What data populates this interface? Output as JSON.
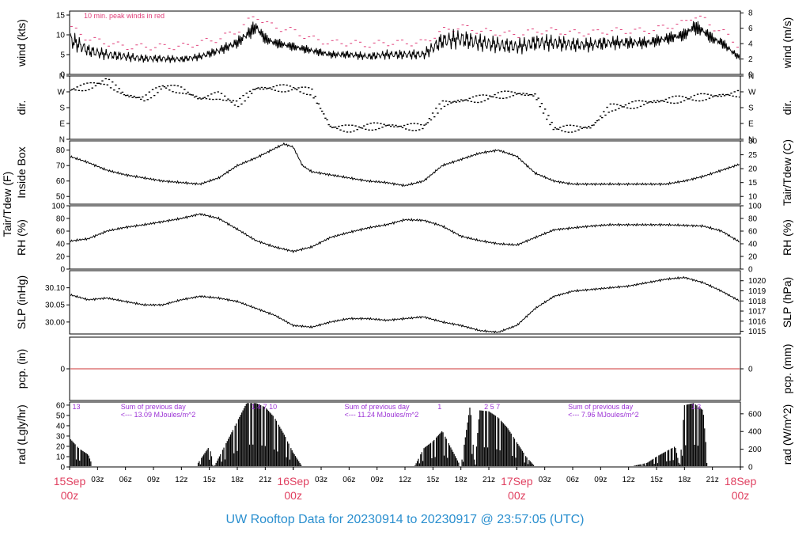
{
  "footer": {
    "title": "UW Rooftop Data for 20230914  to  20230917 @ 23:57:05  (UTC)"
  },
  "colors": {
    "accent": "#2a8fcf",
    "peak": "#e0407a",
    "annotation": "#9c33d6",
    "date": "#e04060",
    "trace": "#000000",
    "zero_line": "#cc3333"
  },
  "chart_data": {
    "type": "line",
    "time_axis": {
      "tick_labels": [
        "03z",
        "06z",
        "09z",
        "12z",
        "15z",
        "18z",
        "21z",
        "",
        "03z",
        "06z",
        "09z",
        "12z",
        "15z",
        "18z",
        "21z",
        "",
        "03z",
        "06z",
        "09z",
        "12z",
        "15z",
        "18z",
        "21z"
      ],
      "date_labels": [
        {
          "hour": 0,
          "date": "15Sep",
          "time": "00z"
        },
        {
          "hour": 24,
          "date": "16Sep",
          "time": "00z"
        },
        {
          "hour": 48,
          "date": "17Sep",
          "time": "00z"
        },
        {
          "hour": 72,
          "date": "18Sep",
          "time": "00z"
        }
      ]
    },
    "panels": [
      {
        "id": "wind",
        "left_label": "wind (kts)",
        "right_label": "wind (m/s)",
        "left_ticks": [
          0,
          5,
          10,
          15
        ],
        "right_ticks": [
          0,
          2,
          4,
          6,
          8
        ],
        "ylim": [
          0,
          16
        ],
        "annotation": "10 min. peak winds in red",
        "series": [
          {
            "name": "wind",
            "x": [
              0,
              2,
              4,
              6,
              8,
              10,
              12,
              14,
              16,
              18,
              19.5,
              20,
              21,
              22,
              24,
              26,
              28,
              30,
              32,
              34,
              36,
              38,
              40,
              42,
              44,
              46,
              48,
              50,
              52,
              54,
              56,
              58,
              60,
              62,
              64,
              66,
              67,
              68,
              69,
              70,
              72
            ],
            "y": [
              9,
              6,
              5,
              4.5,
              4,
              4,
              3.8,
              4.5,
              6,
              8,
              11,
              12,
              9,
              8,
              7,
              6,
              5,
              5,
              4.5,
              5,
              5,
              5,
              8.5,
              9,
              8,
              7.5,
              7,
              8,
              8,
              7.5,
              7.5,
              8,
              8,
              8,
              9,
              10,
              12,
              11,
              9,
              8,
              4
            ]
          },
          {
            "name": "peak",
            "x": [
              0,
              2,
              4,
              6,
              8,
              10,
              12,
              14,
              16,
              18,
              19.5,
              20,
              21,
              22,
              24,
              26,
              28,
              30,
              32,
              34,
              36,
              38,
              40,
              42,
              44,
              46,
              48,
              50,
              52,
              54,
              56,
              58,
              60,
              62,
              64,
              66,
              67,
              68,
              69,
              70,
              72
            ],
            "y": [
              12,
              9,
              8,
              7,
              7,
              7,
              7,
              8,
              9,
              11,
              14,
              15,
              13,
              12,
              11,
              9,
              8,
              8,
              7.5,
              8,
              8,
              8,
              11,
              12,
              11,
              10.5,
              10,
              11,
              11,
              10.5,
              10.5,
              11,
              11,
              11,
              12,
              13,
              15,
              14,
              12,
              11,
              7
            ]
          }
        ]
      },
      {
        "id": "dir",
        "left_label": "dir.",
        "right_label": "dir.",
        "left_ticks": [
          "N",
          "E",
          "S",
          "W",
          "N"
        ],
        "right_ticks": [
          "N",
          "E",
          "S",
          "W",
          "N"
        ],
        "ylim": [
          0,
          360
        ],
        "series": [
          {
            "name": "direction",
            "x": [
              0,
              2,
              4,
              6,
              8,
              10,
              12,
              14,
              16,
              18,
              20,
              22,
              24,
              26,
              28,
              30,
              32,
              34,
              36,
              38,
              40,
              42,
              44,
              46,
              48,
              50,
              52,
              54,
              56,
              58,
              60,
              62,
              64,
              66,
              68,
              70,
              72
            ],
            "y": [
              280,
              300,
              330,
              250,
              230,
              300,
              280,
              230,
              250,
              200,
              290,
              290,
              290,
              270,
              70,
              60,
              70,
              80,
              70,
              70,
              200,
              220,
              230,
              250,
              260,
              250,
              60,
              60,
              70,
              180,
              190,
              210,
              220,
              230,
              240,
              250,
              260
            ]
          }
        ]
      },
      {
        "id": "temp",
        "left_label": "Tair/Tdew (F)",
        "left_label2": "Inside Box",
        "right_label": "Tair/Tdew (C)",
        "left_ticks": [
          50,
          60,
          70,
          80
        ],
        "right_ticks": [
          10,
          15,
          20,
          25,
          30
        ],
        "ylim": [
          45,
          86
        ],
        "series": [
          {
            "name": "Tair",
            "x": [
              0,
              2,
              4,
              6,
              8,
              10,
              12,
              14,
              16,
              18,
              20,
              22,
              23,
              24,
              25,
              26,
              28,
              30,
              32,
              34,
              36,
              38,
              40,
              42,
              44,
              46,
              48,
              50,
              52,
              54,
              56,
              58,
              60,
              62,
              64,
              66,
              68,
              70,
              72
            ],
            "y": [
              76,
              72,
              67,
              64,
              62,
              60,
              59,
              58,
              62,
              70,
              75,
              81,
              84,
              82,
              70,
              66,
              64,
              62,
              60,
              59,
              57,
              60,
              70,
              74,
              78,
              80,
              76,
              65,
              60,
              58,
              58,
              58,
              58,
              58,
              58,
              60,
              63,
              67,
              71
            ]
          }
        ]
      },
      {
        "id": "rh",
        "left_label": "RH (%)",
        "right_label": "RH (%)",
        "left_ticks": [
          0,
          20,
          40,
          60,
          80,
          100
        ],
        "right_ticks": [
          0,
          20,
          40,
          60,
          80,
          100
        ],
        "ylim": [
          0,
          100
        ],
        "series": [
          {
            "name": "RH",
            "x": [
              0,
              2,
              4,
              6,
              8,
              10,
              12,
              14,
              16,
              18,
              20,
              22,
              24,
              26,
              28,
              30,
              32,
              34,
              36,
              38,
              40,
              42,
              44,
              46,
              48,
              50,
              52,
              54,
              56,
              58,
              60,
              62,
              64,
              66,
              68,
              70,
              72
            ],
            "y": [
              44,
              48,
              60,
              66,
              70,
              75,
              80,
              87,
              80,
              63,
              45,
              35,
              28,
              35,
              50,
              58,
              65,
              70,
              78,
              77,
              68,
              52,
              45,
              40,
              38,
              50,
              62,
              65,
              68,
              70,
              70,
              70,
              70,
              69,
              68,
              60,
              42
            ]
          }
        ]
      },
      {
        "id": "slp",
        "left_label": "SLP (inHg)",
        "right_label": "SLP (hPa)",
        "left_ticks": [
          30.0,
          30.05,
          30.1
        ],
        "left_tick_labels": [
          "30.00",
          "30.05",
          "30.10"
        ],
        "right_ticks": [
          1015,
          1016,
          1017,
          1018,
          1019,
          1020
        ],
        "ylim": [
          29.965,
          30.15
        ],
        "series": [
          {
            "name": "SLP",
            "x": [
              0,
              2,
              4,
              6,
              8,
              10,
              12,
              14,
              16,
              18,
              20,
              22,
              24,
              26,
              28,
              30,
              32,
              34,
              36,
              38,
              40,
              42,
              44,
              46,
              48,
              50,
              52,
              54,
              56,
              58,
              60,
              62,
              64,
              66,
              68,
              70,
              72
            ],
            "y": [
              30.08,
              30.065,
              30.07,
              30.06,
              30.05,
              30.05,
              30.065,
              30.075,
              30.07,
              30.06,
              30.04,
              30.02,
              29.99,
              29.985,
              30.0,
              30.01,
              30.01,
              30.005,
              30.01,
              30.015,
              30.0,
              29.99,
              29.975,
              29.97,
              29.99,
              30.04,
              30.075,
              30.09,
              30.095,
              30.1,
              30.105,
              30.115,
              30.125,
              30.13,
              30.115,
              30.09,
              30.06
            ]
          }
        ]
      },
      {
        "id": "pcp",
        "left_label": "pcp. (in)",
        "right_label": "pcp. (mm)",
        "left_ticks": [
          0
        ],
        "right_ticks": [
          0
        ],
        "ylim": [
          -0.5,
          0.5
        ]
      },
      {
        "id": "rad",
        "left_label": "rad (Lgly/hr)",
        "right_label": "rad (W/m^2)",
        "left_ticks": [
          0,
          10,
          20,
          30,
          40,
          50,
          60
        ],
        "right_ticks": [
          0,
          200,
          400,
          600
        ],
        "ylim": [
          0,
          63
        ],
        "annotations": [
          {
            "hour": 0.3,
            "text": "13"
          },
          {
            "hour": 5.5,
            "text": "Sum of previous day"
          },
          {
            "hour": 5.5,
            "text": "<--- 13.09 MJoules/m^2"
          },
          {
            "hour": 19.5,
            "text": "1  4  7  10"
          },
          {
            "hour": 29.5,
            "text": "Sum of previous day"
          },
          {
            "hour": 29.5,
            "text": "<--- 11.24 MJoules/m^2"
          },
          {
            "hour": 39.5,
            "text": "1"
          },
          {
            "hour": 44.5,
            "text": "2  5  7"
          },
          {
            "hour": 53.5,
            "text": "Sum of previous day"
          },
          {
            "hour": 53.5,
            "text": "<--- 7.96 MJoules/m^2"
          },
          {
            "hour": 66.7,
            "text": "1  3"
          }
        ],
        "series": [
          {
            "name": "radiation",
            "x": [
              0,
              1,
              2,
              2.5,
              4,
              13.5,
              15,
              15.5,
              19,
              20,
              21,
              22,
              23,
              24,
              25,
              26,
              37,
              38,
              39,
              40,
              42,
              43,
              43.5,
              44,
              45,
              46,
              47,
              48,
              49,
              50,
              60,
              62,
              63,
              64,
              65,
              65.5,
              66,
              67,
              68,
              68.5,
              72
            ],
            "y": [
              28,
              18,
              12,
              0,
              0,
              0,
              20,
              0,
              62,
              62,
              58,
              48,
              32,
              14,
              0,
              0,
              0,
              18,
              25,
              35,
              0,
              60,
              0,
              55,
              54,
              48,
              38,
              24,
              10,
              0,
              0,
              4,
              10,
              15,
              20,
              0,
              60,
              62,
              55,
              0,
              0
            ]
          }
        ]
      }
    ]
  }
}
